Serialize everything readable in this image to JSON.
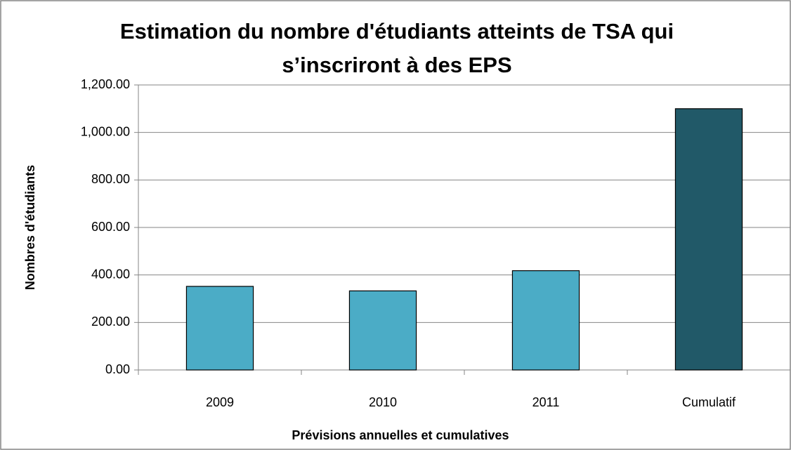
{
  "chart_data": {
    "type": "bar",
    "title": [
      "Estimation du nombre d'étudiants atteints de TSA qui",
      "s’inscriront à des EPS"
    ],
    "x_label": "Prévisions annuelles et cumulatives",
    "y_label": "Nombres d'étudiants",
    "categories": [
      "2009",
      "2010",
      "2011",
      "Cumulatif"
    ],
    "values": [
      352,
      333,
      418,
      1100
    ],
    "colors": [
      "#4bacc6",
      "#4bacc6",
      "#4bacc6",
      "#215968"
    ],
    "ylim": [
      0,
      1200
    ],
    "yticks": [
      {
        "value": 0,
        "label": "0.00"
      },
      {
        "value": 200,
        "label": "200.00"
      },
      {
        "value": 400,
        "label": "400.00"
      },
      {
        "value": 600,
        "label": "600.00"
      },
      {
        "value": 800,
        "label": "800.00"
      },
      {
        "value": 1000,
        "label": "1,000.00"
      },
      {
        "value": 1200,
        "label": "1,200.00"
      }
    ],
    "grid": true
  }
}
